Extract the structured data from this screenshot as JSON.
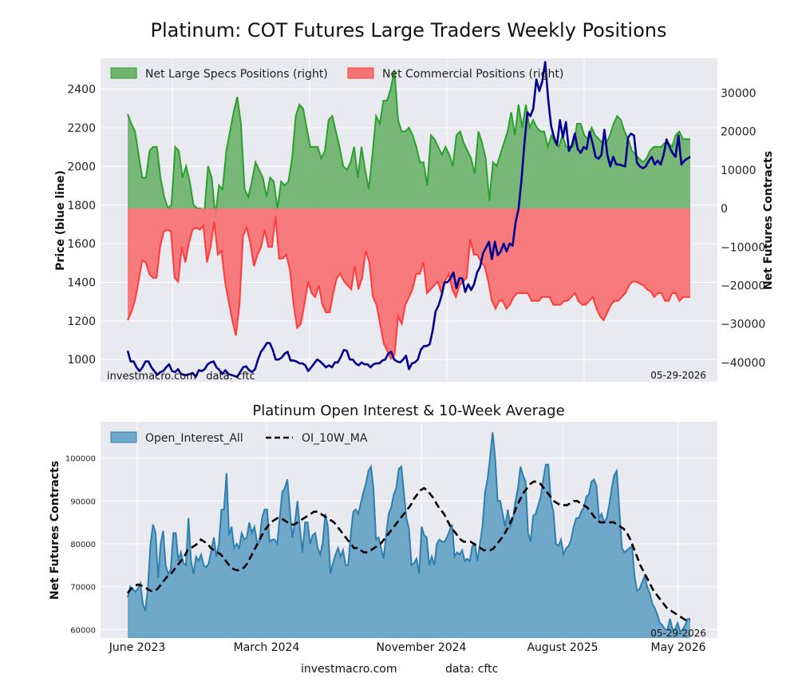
{
  "title": "Platinum: COT Futures Large Traders Weekly Positions",
  "footer": {
    "left": "investmacro.com",
    "right": "data: cftc"
  },
  "chart_data": [
    {
      "type": "area",
      "ylabel_left": "Price (blue line)",
      "ylabel_right": "Net Futures Contracts",
      "watermark": "investmacro.com   data: cftc",
      "date_label": "05-29-2026",
      "legend_placement": "top-left",
      "grid": true,
      "ylim_left": [
        885,
        2560
      ],
      "ylim_right": [
        -45000,
        39000
      ],
      "yticks_left": [
        "1000",
        "1200",
        "1400",
        "1600",
        "1800",
        "2000",
        "2200",
        "2400"
      ],
      "yticks_right": [
        "−40000",
        "−30000",
        "−20000",
        "−10000",
        "0",
        "10000",
        "20000",
        "30000"
      ],
      "series": [
        {
          "name": "Net Large Specs Positions (right)",
          "color": "#2ca02c",
          "fill": "#71b471",
          "values": [
            24500,
            22000,
            20000,
            14000,
            8000,
            8000,
            15000,
            16000,
            16000,
            8000,
            3000,
            0,
            1000,
            16000,
            15000,
            8000,
            11000,
            7000,
            1000,
            0,
            0,
            -1000,
            11000,
            8000,
            -2000,
            6000,
            5000,
            15000,
            20000,
            25000,
            29000,
            22000,
            5000,
            3000,
            7000,
            12000,
            10000,
            8000,
            3000,
            8000,
            7000,
            0,
            7000,
            6000,
            7000,
            13000,
            24000,
            27000,
            26000,
            21000,
            16000,
            16000,
            16000,
            13000,
            15000,
            23000,
            24000,
            20000,
            16000,
            11000,
            10000,
            12000,
            16000,
            8000,
            16000,
            10000,
            5000,
            14000,
            24000,
            22000,
            28000,
            28000,
            31000,
            36000,
            23000,
            20000,
            20000,
            21000,
            19000,
            16000,
            12000,
            12000,
            6000,
            19000,
            18000,
            16000,
            14000,
            16000,
            14000,
            11000,
            19000,
            20000,
            17000,
            15000,
            13000,
            9000,
            20000,
            17000,
            13000,
            2000,
            12000,
            11000,
            14000,
            17000,
            20000,
            25000,
            19000,
            27000,
            21000,
            27000,
            21000,
            23000,
            21000,
            20000,
            20000,
            16000,
            19000,
            17000,
            16000,
            19000,
            16000,
            16000,
            16000,
            22000,
            22000,
            19000,
            18000,
            21000,
            19000,
            18000,
            17000,
            17000,
            19000,
            22000,
            24000,
            23000,
            20000,
            18000,
            15000,
            14000,
            13000,
            12000,
            13000,
            15000,
            16000,
            16000,
            16000,
            17000,
            17000,
            16000,
            19000,
            20000,
            18000,
            18000,
            18000
          ]
        },
        {
          "name": "Net Commercial Positions (right)",
          "color": "#ff3a3a",
          "fill": "#f77474",
          "values": [
            -29000,
            -27000,
            -24000,
            -19000,
            -13500,
            -14000,
            -17000,
            -18000,
            -18000,
            -10000,
            -6000,
            -5500,
            -6000,
            -18000,
            -19000,
            -10000,
            -14000,
            -9000,
            -5500,
            -5000,
            -5500,
            -4500,
            -14000,
            -10000,
            -3500,
            -12000,
            -11000,
            -19000,
            -24000,
            -29000,
            -33000,
            -25000,
            -7000,
            -5000,
            -9000,
            -15000,
            -12000,
            -10000,
            -5500,
            -10000,
            -10000,
            -2000,
            -13000,
            -13000,
            -12000,
            -16000,
            -25000,
            -31000,
            -30000,
            -25000,
            -19000,
            -22000,
            -23000,
            -20000,
            -25000,
            -27000,
            -27000,
            -22000,
            -18000,
            -17000,
            -19000,
            -20000,
            -21000,
            -15000,
            -21000,
            -18000,
            -11000,
            -14000,
            -23000,
            -25000,
            -30000,
            -35000,
            -37000,
            -39000,
            -38000,
            -28000,
            -30000,
            -25000,
            -23000,
            -21000,
            -17000,
            -17000,
            -14000,
            -22000,
            -21000,
            -20000,
            -19000,
            -22000,
            -19000,
            -17000,
            -21000,
            -23000,
            -20000,
            -19000,
            -18000,
            -8000,
            -12000,
            -12000,
            -14000,
            -15000,
            -19000,
            -24000,
            -26000,
            -24000,
            -24000,
            -26000,
            -25000,
            -23000,
            -22000,
            -22000,
            -22000,
            -22000,
            -24000,
            -24000,
            -24000,
            -23000,
            -23000,
            -23000,
            -25000,
            -25000,
            -25000,
            -24000,
            -24000,
            -23000,
            -22000,
            -24000,
            -25000,
            -25000,
            -24000,
            -23000,
            -26000,
            -28000,
            -29000,
            -27000,
            -25000,
            -24000,
            -24000,
            -23000,
            -22000,
            -20000,
            -19000,
            -19000,
            -19500,
            -20000,
            -21000,
            -21500,
            -23000,
            -22000,
            -22000,
            -24000,
            -24000,
            -22000,
            -22000,
            -24000,
            -23000,
            -23000,
            -23000
          ]
        },
        {
          "name": "Price",
          "color": "#000090",
          "values": [
            1045,
            990,
            990,
            960,
            940,
            960,
            990,
            990,
            960,
            940,
            920,
            935,
            940,
            960,
            975,
            940,
            935,
            950,
            925,
            920,
            920,
            925,
            930,
            910,
            945,
            940,
            950,
            975,
            985,
            990,
            960,
            945,
            925,
            945,
            925,
            920,
            915,
            910,
            935,
            960,
            965,
            945,
            935,
            950,
            1000,
            1040,
            1060,
            1085,
            1085,
            1050,
            1000,
            1000,
            1010,
            1030,
            1040,
            995,
            995,
            990,
            980,
            980,
            970,
            940,
            960,
            980,
            1000,
            990,
            975,
            960,
            970,
            960,
            985,
            985,
            1015,
            1050,
            1045,
            1000,
            1000,
            980,
            970,
            985,
            975,
            975,
            960,
            975,
            980,
            980,
            995,
            1000,
            1030,
            1040,
            1000,
            990,
            985,
            1000,
            1020,
            950,
            980,
            985,
            1000,
            1050,
            1070,
            1070,
            1080,
            1150,
            1250,
            1280,
            1330,
            1400,
            1400,
            1420,
            1450,
            1370,
            1420,
            1420,
            1350,
            1390,
            1360,
            1390,
            1450,
            1480,
            1550,
            1580,
            1610,
            1520,
            1610,
            1540,
            1560,
            1600,
            1560,
            1600,
            1590,
            1710,
            1780,
            1930,
            2120,
            2280,
            2260,
            2300,
            2450,
            2390,
            2440,
            2540,
            2350,
            2210,
            2150,
            2110,
            2240,
            2150,
            2230,
            2080,
            2110,
            2170,
            2090,
            2070,
            2100,
            2090,
            2180,
            2120,
            2050,
            2040,
            2060,
            2190,
            2060,
            2000,
            2050,
            2010,
            2010,
            2005,
            2000,
            2150,
            2170,
            2160,
            2020,
            2000,
            1990,
            2000,
            2030,
            2050,
            2010,
            2030,
            2010,
            2060,
            2140,
            2100,
            2070,
            2050,
            2160,
            2010,
            2030,
            2040,
            2050
          ]
        }
      ]
    },
    {
      "type": "area",
      "title": "Platinum Open Interest & 10-Week Average",
      "ylabel": "Net Futures Contracts",
      "date_label": "05-29-2026",
      "legend_placement": "top-left",
      "grid": true,
      "ylim": [
        58000,
        108500
      ],
      "yticks": [
        "60000",
        "70000",
        "80000",
        "90000",
        "100000"
      ],
      "x_tick_labels": [
        "June 2023",
        "March 2024",
        "November 2024",
        "August 2025",
        "May 2026"
      ],
      "series": [
        {
          "name": "Open_Interest_All",
          "color": "#2f7fae",
          "fill": "#6fa8c8",
          "values": [
            67500,
            70000,
            69500,
            68800,
            69500,
            70800,
            66000,
            64300,
            70000,
            80000,
            84500,
            82500,
            72000,
            80000,
            83000,
            75000,
            73000,
            74000,
            82500,
            82500,
            76000,
            78000,
            75500,
            75000,
            86000,
            76000,
            73000,
            77000,
            76000,
            77500,
            75000,
            74500,
            75500,
            78500,
            81500,
            77000,
            80000,
            88000,
            88000,
            96500,
            82000,
            84000,
            79000,
            80000,
            79000,
            82500,
            81000,
            81500,
            85000,
            82500,
            84000,
            80500,
            80500,
            86000,
            88000,
            88000,
            80500,
            81000,
            81000,
            80000,
            86000,
            92000,
            93000,
            95000,
            88000,
            81500,
            85000,
            90000,
            83500,
            78000,
            85000,
            85000,
            80000,
            82000,
            82500,
            79000,
            77500,
            80500,
            87000,
            84000,
            73000,
            75500,
            77500,
            79000,
            77000,
            78500,
            75000,
            75000,
            82000,
            87500,
            88000,
            87000,
            89500,
            92000,
            94000,
            97000,
            98000,
            93000,
            81000,
            81500,
            79000,
            76500,
            82000,
            87000,
            88500,
            91500,
            93000,
            97500,
            98000,
            92000,
            86000,
            83500,
            75000,
            75500,
            76500,
            73000,
            84000,
            82000,
            81500,
            75000,
            77000,
            75000,
            80000,
            81000,
            80500,
            80500,
            81500,
            83000,
            84500,
            77000,
            78000,
            77500,
            78500,
            76000,
            76500,
            76000,
            79500,
            80000,
            76000,
            80000,
            84000,
            92000,
            95000,
            100000,
            106000,
            100000,
            90000,
            90000,
            87000,
            84000,
            88000,
            84000,
            85500,
            90000,
            93000,
            98000,
            96000,
            94500,
            82500,
            80500,
            86500,
            87000,
            89000,
            91000,
            95000,
            98500,
            98500,
            90000,
            87500,
            80000,
            79500,
            81000,
            77500,
            79000,
            79500,
            81000,
            84000,
            86000,
            86000,
            87500,
            88500,
            91000,
            91500,
            94500,
            95000,
            93500,
            86000,
            87000,
            85000,
            86000,
            89000,
            93000,
            96000,
            97000,
            88000,
            79000,
            78000,
            78500,
            79000,
            79500,
            72500,
            69000,
            69500,
            71000,
            72500,
            70000,
            68500,
            66000,
            65000,
            63500,
            61500,
            61000,
            60000,
            60000,
            62500,
            60000,
            60000,
            61500,
            59500,
            60000,
            61000,
            62500,
            62500
          ]
        },
        {
          "name": "OI_10W_MA",
          "color": "#000000",
          "values": [
            68500,
            69500,
            70000,
            70500,
            70300,
            70000,
            69400,
            69000,
            69000,
            69500,
            70500,
            71500,
            72500,
            73000,
            74000,
            75000,
            76000,
            77000,
            78500,
            79000,
            79500,
            80000,
            81000,
            80500,
            80000,
            79000,
            78500,
            78000,
            77500,
            76500,
            75500,
            74500,
            74000,
            73800,
            74000,
            74500,
            75500,
            77000,
            78500,
            80000,
            81500,
            83000,
            84000,
            85000,
            85500,
            86000,
            86000,
            85500,
            85000,
            84500,
            84500,
            85000,
            85500,
            86000,
            86500,
            87000,
            87500,
            87500,
            87000,
            86500,
            86000,
            85500,
            85000,
            84000,
            83000,
            82000,
            81000,
            80000,
            79000,
            79000,
            78500,
            78000,
            78000,
            78500,
            79000,
            79500,
            80000,
            81000,
            82000,
            83000,
            84000,
            85000,
            86000,
            87000,
            88000,
            89000,
            90500,
            91500,
            92500,
            93000,
            92500,
            91500,
            90500,
            89000,
            88000,
            87000,
            85500,
            84000,
            83000,
            82000,
            81000,
            80500,
            80500,
            80500,
            80000,
            79500,
            79000,
            78500,
            78500,
            78500,
            79000,
            80000,
            81000,
            82000,
            83500,
            85000,
            87000,
            89000,
            90500,
            92000,
            93000,
            94000,
            94500,
            94500,
            94000,
            93000,
            92000,
            91000,
            90000,
            89500,
            89000,
            89000,
            89000,
            89500,
            90000,
            90000,
            89500,
            89000,
            88500,
            87500,
            86500,
            85500,
            85000,
            85000,
            85000,
            85000,
            85000,
            84500,
            84000,
            83500,
            82500,
            81000,
            79000,
            77000,
            75000,
            73500,
            72000,
            70500,
            69000,
            68000,
            67000,
            66000,
            65000,
            64500,
            64000,
            63500,
            63000,
            62500,
            62000,
            62000
          ]
        }
      ]
    }
  ]
}
